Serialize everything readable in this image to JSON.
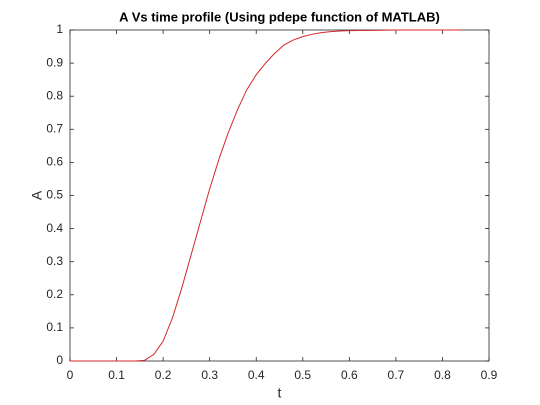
{
  "chart_data": {
    "type": "line",
    "title": "A Vs time profile (Using pdepe function of MATLAB)",
    "x_label": "t",
    "y_label": "A",
    "x": [
      0,
      0.02,
      0.04,
      0.06,
      0.08,
      0.1,
      0.12,
      0.14,
      0.16,
      0.18,
      0.2,
      0.22,
      0.24,
      0.26,
      0.28,
      0.3,
      0.32,
      0.34,
      0.36,
      0.38,
      0.4,
      0.42,
      0.44,
      0.46,
      0.48,
      0.5,
      0.52,
      0.54,
      0.56,
      0.58,
      0.6,
      0.65,
      0.7,
      0.75,
      0.8,
      0.84
    ],
    "series": [
      {
        "name": "A",
        "color": "#d62728",
        "values": [
          0,
          0,
          0,
          0,
          0,
          0,
          0,
          0,
          0.002,
          0.02,
          0.06,
          0.13,
          0.22,
          0.32,
          0.42,
          0.52,
          0.61,
          0.69,
          0.76,
          0.82,
          0.865,
          0.9,
          0.93,
          0.955,
          0.97,
          0.98,
          0.987,
          0.992,
          0.995,
          0.997,
          0.998,
          0.999,
          1,
          1,
          1,
          1
        ]
      }
    ],
    "xlim": [
      0,
      0.9
    ],
    "xticks": [
      0,
      0.1,
      0.2,
      0.3,
      0.4,
      0.5,
      0.6,
      0.7,
      0.8,
      0.9
    ],
    "ylim": [
      0,
      1
    ],
    "yticks": [
      0,
      0.1,
      0.2,
      0.3,
      0.4,
      0.5,
      0.6,
      0.7,
      0.8,
      0.9,
      1
    ],
    "grid": false
  }
}
